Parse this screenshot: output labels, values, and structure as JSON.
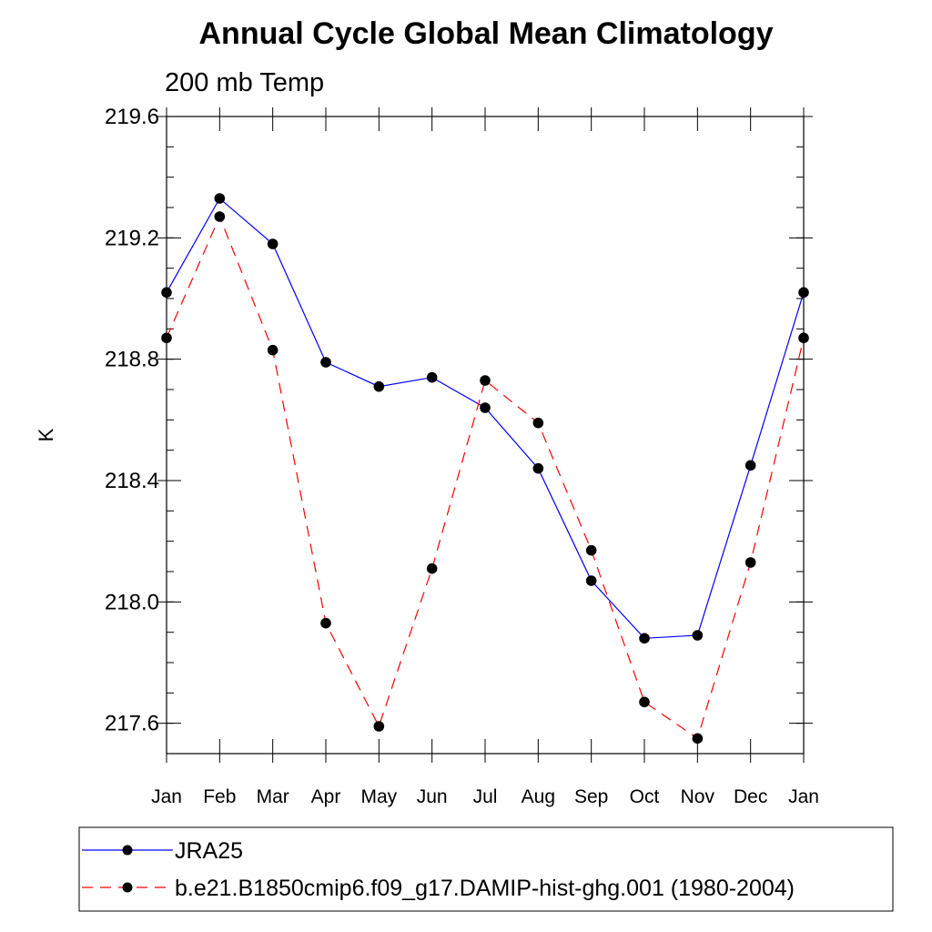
{
  "chart_data": {
    "type": "line",
    "title": "Annual Cycle Global Mean Climatology",
    "subtitle": "200 mb Temp",
    "xlabel": "",
    "ylabel": "K",
    "categories": [
      "Jan",
      "Feb",
      "Mar",
      "Apr",
      "May",
      "Jun",
      "Jul",
      "Aug",
      "Sep",
      "Oct",
      "Nov",
      "Dec",
      "Jan"
    ],
    "ylim": [
      217.5,
      219.6
    ],
    "yticks": [
      {
        "value": 217.6,
        "label": "217.6"
      },
      {
        "value": 218.0,
        "label": "218.0"
      },
      {
        "value": 218.4,
        "label": "218.4"
      },
      {
        "value": 218.8,
        "label": "218.8"
      },
      {
        "value": 219.2,
        "label": "219.2"
      },
      {
        "value": 219.6,
        "label": "219.6"
      }
    ],
    "series": [
      {
        "name": "JRA25",
        "color": "#0000ff",
        "dash": "solid",
        "values": [
          219.02,
          219.33,
          219.18,
          218.79,
          218.71,
          218.74,
          218.64,
          218.44,
          218.07,
          217.88,
          217.89,
          218.45,
          219.02
        ]
      },
      {
        "name": "b.e21.B1850cmip6.f09_g17.DAMIP-hist-ghg.001 (1980-2004)",
        "color": "#ff0000",
        "dash": "dashed",
        "values": [
          218.87,
          219.27,
          218.83,
          217.93,
          217.59,
          218.11,
          218.73,
          218.59,
          218.17,
          217.67,
          217.55,
          218.13,
          218.87
        ]
      }
    ],
    "legend_position": "bottom"
  }
}
